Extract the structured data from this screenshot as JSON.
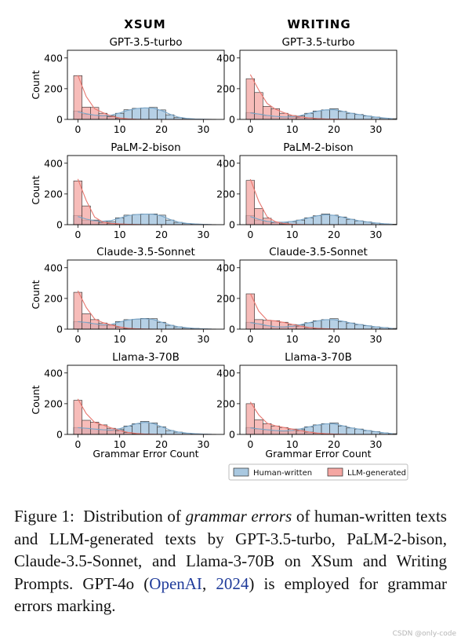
{
  "columns": [
    "XSUM",
    "WRITING"
  ],
  "legend": {
    "human": "Human-written",
    "llm": "LLM-generated"
  },
  "colors": {
    "human_fill": "#a9c8e0",
    "human_edge": "#2b2b2b",
    "llm_fill": "#f4a6a2",
    "llm_edge": "#2b2b2b",
    "llm_kde": "#e8776f",
    "human_kde": "#7aa6c8"
  },
  "caption": {
    "lead": "Figure 1:  Distribution of ",
    "em": "grammar errors",
    "mid": " of human-written texts and LLM-generated texts by GPT-3.5-turbo, PaLM-2-bison, Claude-3.5-Sonnet, and Llama-3-70B on XSum and Writing Prompts. GPT-4o (",
    "cite_name": "OpenAI",
    "sep": ", ",
    "cite_year": "2024",
    "tail": ") is employed for grammar errors marking."
  },
  "watermark": "CSDN @only-code",
  "chart_data": [
    {
      "type": "bar",
      "title": "GPT-3.5-turbo",
      "column": "XSUM",
      "xlabel": "",
      "ylabel": "Count",
      "xlim": [
        -2.5,
        35
      ],
      "ylim": [
        0,
        450
      ],
      "xticks": [
        0,
        10,
        20,
        30
      ],
      "yticks": [
        0,
        200,
        400
      ],
      "bin_width": 2,
      "bin_start": [
        -1,
        1,
        3,
        5,
        7,
        9,
        11,
        13,
        15,
        17,
        19,
        21,
        23,
        25,
        27,
        29,
        31
      ],
      "series": [
        {
          "name": "Human-written",
          "values": [
            55,
            32,
            28,
            22,
            25,
            40,
            63,
            72,
            75,
            78,
            62,
            30,
            12,
            6,
            3,
            1,
            1
          ]
        },
        {
          "name": "LLM-generated",
          "values": [
            285,
            80,
            78,
            40,
            18,
            8,
            3,
            1,
            0,
            0,
            0,
            0,
            0,
            0,
            0,
            0,
            0
          ]
        }
      ]
    },
    {
      "type": "bar",
      "title": "GPT-3.5-turbo",
      "column": "WRITING",
      "xlabel": "",
      "ylabel": "",
      "xlim": [
        -2.5,
        35
      ],
      "ylim": [
        0,
        450
      ],
      "xticks": [
        0,
        10,
        20,
        30
      ],
      "yticks": [
        0,
        200,
        400
      ],
      "bin_width": 2,
      "bin_start": [
        -1,
        1,
        3,
        5,
        7,
        9,
        11,
        13,
        15,
        17,
        19,
        21,
        23,
        25,
        27,
        29,
        31,
        33
      ],
      "series": [
        {
          "name": "Human-written",
          "values": [
            45,
            35,
            25,
            20,
            15,
            15,
            22,
            40,
            55,
            62,
            70,
            52,
            40,
            32,
            22,
            15,
            8,
            5
          ]
        },
        {
          "name": "LLM-generated",
          "values": [
            265,
            175,
            85,
            70,
            40,
            25,
            15,
            10,
            5,
            3,
            2,
            1,
            0,
            0,
            0,
            0,
            0,
            0
          ]
        }
      ]
    },
    {
      "type": "bar",
      "title": "PaLM-2-bison",
      "column": "XSUM",
      "xlabel": "",
      "ylabel": "Count",
      "xlim": [
        -2.5,
        35
      ],
      "ylim": [
        0,
        450
      ],
      "xticks": [
        0,
        10,
        20,
        30
      ],
      "yticks": [
        0,
        200,
        400
      ],
      "bin_width": 2,
      "bin_start": [
        -1,
        1,
        3,
        5,
        7,
        9,
        11,
        13,
        15,
        17,
        19,
        21,
        23,
        25,
        27,
        29,
        31
      ],
      "series": [
        {
          "name": "Human-written",
          "values": [
            60,
            30,
            25,
            22,
            20,
            45,
            62,
            66,
            70,
            70,
            62,
            30,
            15,
            8,
            4,
            2,
            1
          ]
        },
        {
          "name": "LLM-generated",
          "values": [
            285,
            122,
            30,
            15,
            8,
            4,
            2,
            1,
            0,
            0,
            0,
            0,
            0,
            0,
            0,
            0,
            0
          ]
        }
      ]
    },
    {
      "type": "bar",
      "title": "PaLM-2-bison",
      "column": "WRITING",
      "xlabel": "",
      "ylabel": "",
      "xlim": [
        -2.5,
        35
      ],
      "ylim": [
        0,
        450
      ],
      "xticks": [
        0,
        10,
        20,
        30
      ],
      "yticks": [
        0,
        200,
        400
      ],
      "bin_width": 2,
      "bin_start": [
        -1,
        1,
        3,
        5,
        7,
        9,
        11,
        13,
        15,
        17,
        19,
        21,
        23,
        25,
        27,
        29,
        31,
        33
      ],
      "series": [
        {
          "name": "Human-written",
          "values": [
            60,
            30,
            20,
            15,
            15,
            20,
            30,
            45,
            58,
            70,
            62,
            50,
            35,
            25,
            18,
            10,
            6,
            3
          ]
        },
        {
          "name": "LLM-generated",
          "values": [
            288,
            105,
            42,
            15,
            5,
            3,
            1,
            0,
            0,
            0,
            0,
            0,
            0,
            0,
            0,
            0,
            0,
            0
          ]
        }
      ]
    },
    {
      "type": "bar",
      "title": "Claude-3.5-Sonnet",
      "column": "XSUM",
      "xlabel": "",
      "ylabel": "Count",
      "xlim": [
        -2.5,
        35
      ],
      "ylim": [
        0,
        450
      ],
      "xticks": [
        0,
        10,
        20,
        30
      ],
      "yticks": [
        0,
        200,
        400
      ],
      "bin_width": 2,
      "bin_start": [
        -1,
        1,
        3,
        5,
        7,
        9,
        11,
        13,
        15,
        17,
        19,
        21,
        23,
        25,
        27,
        29,
        31
      ],
      "series": [
        {
          "name": "Human-written",
          "values": [
            50,
            45,
            35,
            25,
            25,
            50,
            62,
            65,
            70,
            68,
            45,
            25,
            15,
            8,
            5,
            2,
            1
          ]
        },
        {
          "name": "LLM-generated",
          "values": [
            240,
            100,
            62,
            40,
            28,
            12,
            5,
            2,
            1,
            0,
            0,
            0,
            0,
            0,
            0,
            0,
            0
          ]
        }
      ]
    },
    {
      "type": "bar",
      "title": "Claude-3.5-Sonnet",
      "column": "WRITING",
      "xlabel": "",
      "ylabel": "",
      "xlim": [
        -2.5,
        35
      ],
      "ylim": [
        0,
        450
      ],
      "xticks": [
        0,
        10,
        20,
        30
      ],
      "yticks": [
        0,
        200,
        400
      ],
      "bin_width": 2,
      "bin_start": [
        -1,
        1,
        3,
        5,
        7,
        9,
        11,
        13,
        15,
        17,
        19,
        21,
        23,
        25,
        27,
        29,
        31,
        33
      ],
      "series": [
        {
          "name": "Human-written",
          "values": [
            45,
            35,
            22,
            15,
            12,
            18,
            28,
            42,
            55,
            62,
            68,
            50,
            40,
            30,
            22,
            15,
            10,
            5
          ]
        },
        {
          "name": "LLM-generated",
          "values": [
            230,
            62,
            58,
            55,
            45,
            30,
            20,
            10,
            5,
            3,
            1,
            0,
            0,
            0,
            0,
            0,
            0,
            0
          ]
        }
      ]
    },
    {
      "type": "bar",
      "title": "Llama-3-70B",
      "column": "XSUM",
      "xlabel": "Grammar Error Count",
      "ylabel": "Count",
      "xlim": [
        -2.5,
        35
      ],
      "ylim": [
        0,
        450
      ],
      "xticks": [
        0,
        10,
        20,
        30
      ],
      "yticks": [
        0,
        200,
        400
      ],
      "bin_width": 2,
      "bin_start": [
        -1,
        1,
        3,
        5,
        7,
        9,
        11,
        13,
        15,
        17,
        19,
        21,
        23,
        25,
        27,
        29,
        31
      ],
      "series": [
        {
          "name": "Human-written",
          "values": [
            45,
            40,
            35,
            30,
            25,
            35,
            55,
            70,
            85,
            75,
            50,
            25,
            15,
            8,
            4,
            2,
            1
          ]
        },
        {
          "name": "LLM-generated",
          "values": [
            222,
            92,
            80,
            62,
            40,
            25,
            12,
            5,
            2,
            1,
            0,
            0,
            0,
            0,
            0,
            0,
            0
          ]
        }
      ]
    },
    {
      "type": "bar",
      "title": "Llama-3-70B",
      "column": "WRITING",
      "xlabel": "Grammar Error Count",
      "ylabel": "",
      "xlim": [
        -2.5,
        35
      ],
      "ylim": [
        0,
        450
      ],
      "xticks": [
        0,
        10,
        20,
        30
      ],
      "yticks": [
        0,
        200,
        400
      ],
      "bin_width": 2,
      "bin_start": [
        -1,
        1,
        3,
        5,
        7,
        9,
        11,
        13,
        15,
        17,
        19,
        21,
        23,
        25,
        27,
        29,
        31,
        33
      ],
      "series": [
        {
          "name": "Human-written",
          "values": [
            45,
            35,
            30,
            25,
            20,
            25,
            35,
            50,
            62,
            70,
            75,
            55,
            42,
            35,
            25,
            18,
            10,
            5
          ]
        },
        {
          "name": "LLM-generated",
          "values": [
            200,
            95,
            70,
            55,
            45,
            35,
            25,
            15,
            8,
            4,
            2,
            1,
            0,
            0,
            0,
            0,
            0,
            0
          ]
        }
      ]
    }
  ]
}
